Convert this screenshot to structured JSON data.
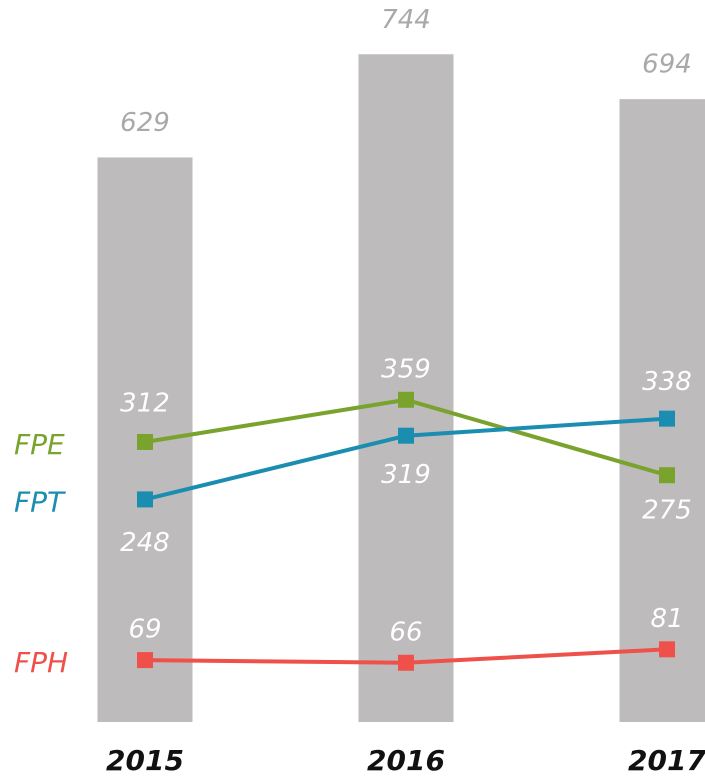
{
  "chart_data": {
    "type": "bar-line",
    "categories": [
      "2015",
      "2016",
      "2017"
    ],
    "values": [
      629,
      744,
      694
    ],
    "color": "#bdbbbb",
    "series": [
      {
        "name": "FPE",
        "color": "#7aa32e",
        "values": [
          312,
          359,
          275
        ]
      },
      {
        "name": "FPT",
        "color": "#1b8db0",
        "values": [
          248,
          319,
          338
        ]
      },
      {
        "name": "FPH",
        "color": "#f0504a",
        "values": [
          69,
          66,
          81
        ]
      }
    ],
    "ylim": [
      0,
      800
    ]
  }
}
